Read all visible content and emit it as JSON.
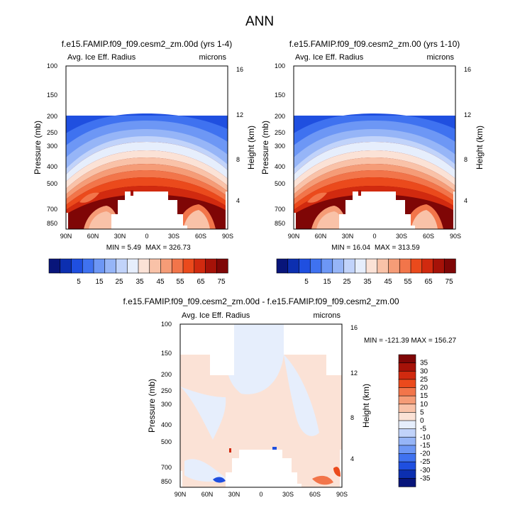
{
  "figure": {
    "title": "ANN",
    "field_label": "Avg. Ice Eff. Radius",
    "units": "microns",
    "ylabel_left": "Pressure (mb)",
    "ylabel_right": "Height (km)"
  },
  "chart_data": [
    {
      "type": "heatmap",
      "title": "f.e15.FAMIP.f09_f09.cesm2_zm.00d (yrs 1-4)",
      "subtitle_left": "Avg. Ice Eff. Radius",
      "subtitle_right": "microns",
      "x_ticks": [
        "90N",
        "60N",
        "30N",
        "0",
        "30S",
        "60S",
        "90S"
      ],
      "y_ticks_left": [
        "100",
        "150",
        "200",
        "250",
        "300",
        "400",
        "500",
        "700",
        "850"
      ],
      "y_ticks_right": [
        "16",
        "12",
        "8",
        "4"
      ],
      "min_label": "MIN =   5.49",
      "max_label": "MAX = 326.73",
      "colorbar_labels": [
        "5",
        "15",
        "25",
        "35",
        "45",
        "55",
        "65",
        "75"
      ]
    },
    {
      "type": "heatmap",
      "title": "f.e15.FAMIP.f09_f09.cesm2_zm.00 (yrs 1-10)",
      "subtitle_left": "Avg. Ice Eff. Radius",
      "subtitle_right": "microns",
      "x_ticks": [
        "90N",
        "60N",
        "30N",
        "0",
        "30S",
        "60S",
        "90S"
      ],
      "y_ticks_left": [
        "100",
        "150",
        "200",
        "250",
        "300",
        "400",
        "500",
        "700",
        "850"
      ],
      "y_ticks_right": [
        "16",
        "12",
        "8",
        "4"
      ],
      "min_label": "MIN = 16.04",
      "max_label": "MAX = 313.59",
      "colorbar_labels": [
        "5",
        "15",
        "25",
        "35",
        "45",
        "55",
        "65",
        "75"
      ]
    },
    {
      "type": "heatmap",
      "title": "f.e15.FAMIP.f09_f09.cesm2_zm.00d - f.e15.FAMIP.f09_f09.cesm2_zm.00",
      "subtitle_left": "Avg. Ice Eff. Radius",
      "subtitle_right": "microns",
      "x_ticks": [
        "90N",
        "60N",
        "30N",
        "0",
        "30S",
        "60S",
        "90S"
      ],
      "y_ticks_left": [
        "100",
        "150",
        "200",
        "250",
        "300",
        "400",
        "500",
        "700",
        "850"
      ],
      "y_ticks_right": [
        "16",
        "12",
        "8",
        "4"
      ],
      "minmax_label": "MIN = -121.39  MAX = 156.27",
      "colorbar_labels": [
        "35",
        "30",
        "25",
        "20",
        "15",
        "10",
        "5",
        "0",
        "-5",
        "-10",
        "-15",
        "-20",
        "-25",
        "-30",
        "-35"
      ]
    }
  ],
  "colors": {
    "mean_scale": [
      "#08157a",
      "#0c2fb0",
      "#1f4fe0",
      "#3f72f0",
      "#6d97f5",
      "#96b5f7",
      "#c1d3fa",
      "#e6eefc",
      "#fbe2d6",
      "#f9c2a8",
      "#f59c77",
      "#f2754a",
      "#eb4a1c",
      "#d12a0f",
      "#a61208",
      "#7f0606"
    ],
    "diff_scale": [
      "#08157a",
      "#0c2fb0",
      "#1f4fe0",
      "#3f72f0",
      "#6d97f5",
      "#96b5f7",
      "#c1d3fa",
      "#e6eefc",
      "#fbe2d6",
      "#f9c2a8",
      "#f59c77",
      "#f2754a",
      "#eb4a1c",
      "#d12a0f",
      "#a61208",
      "#7f0606"
    ]
  }
}
